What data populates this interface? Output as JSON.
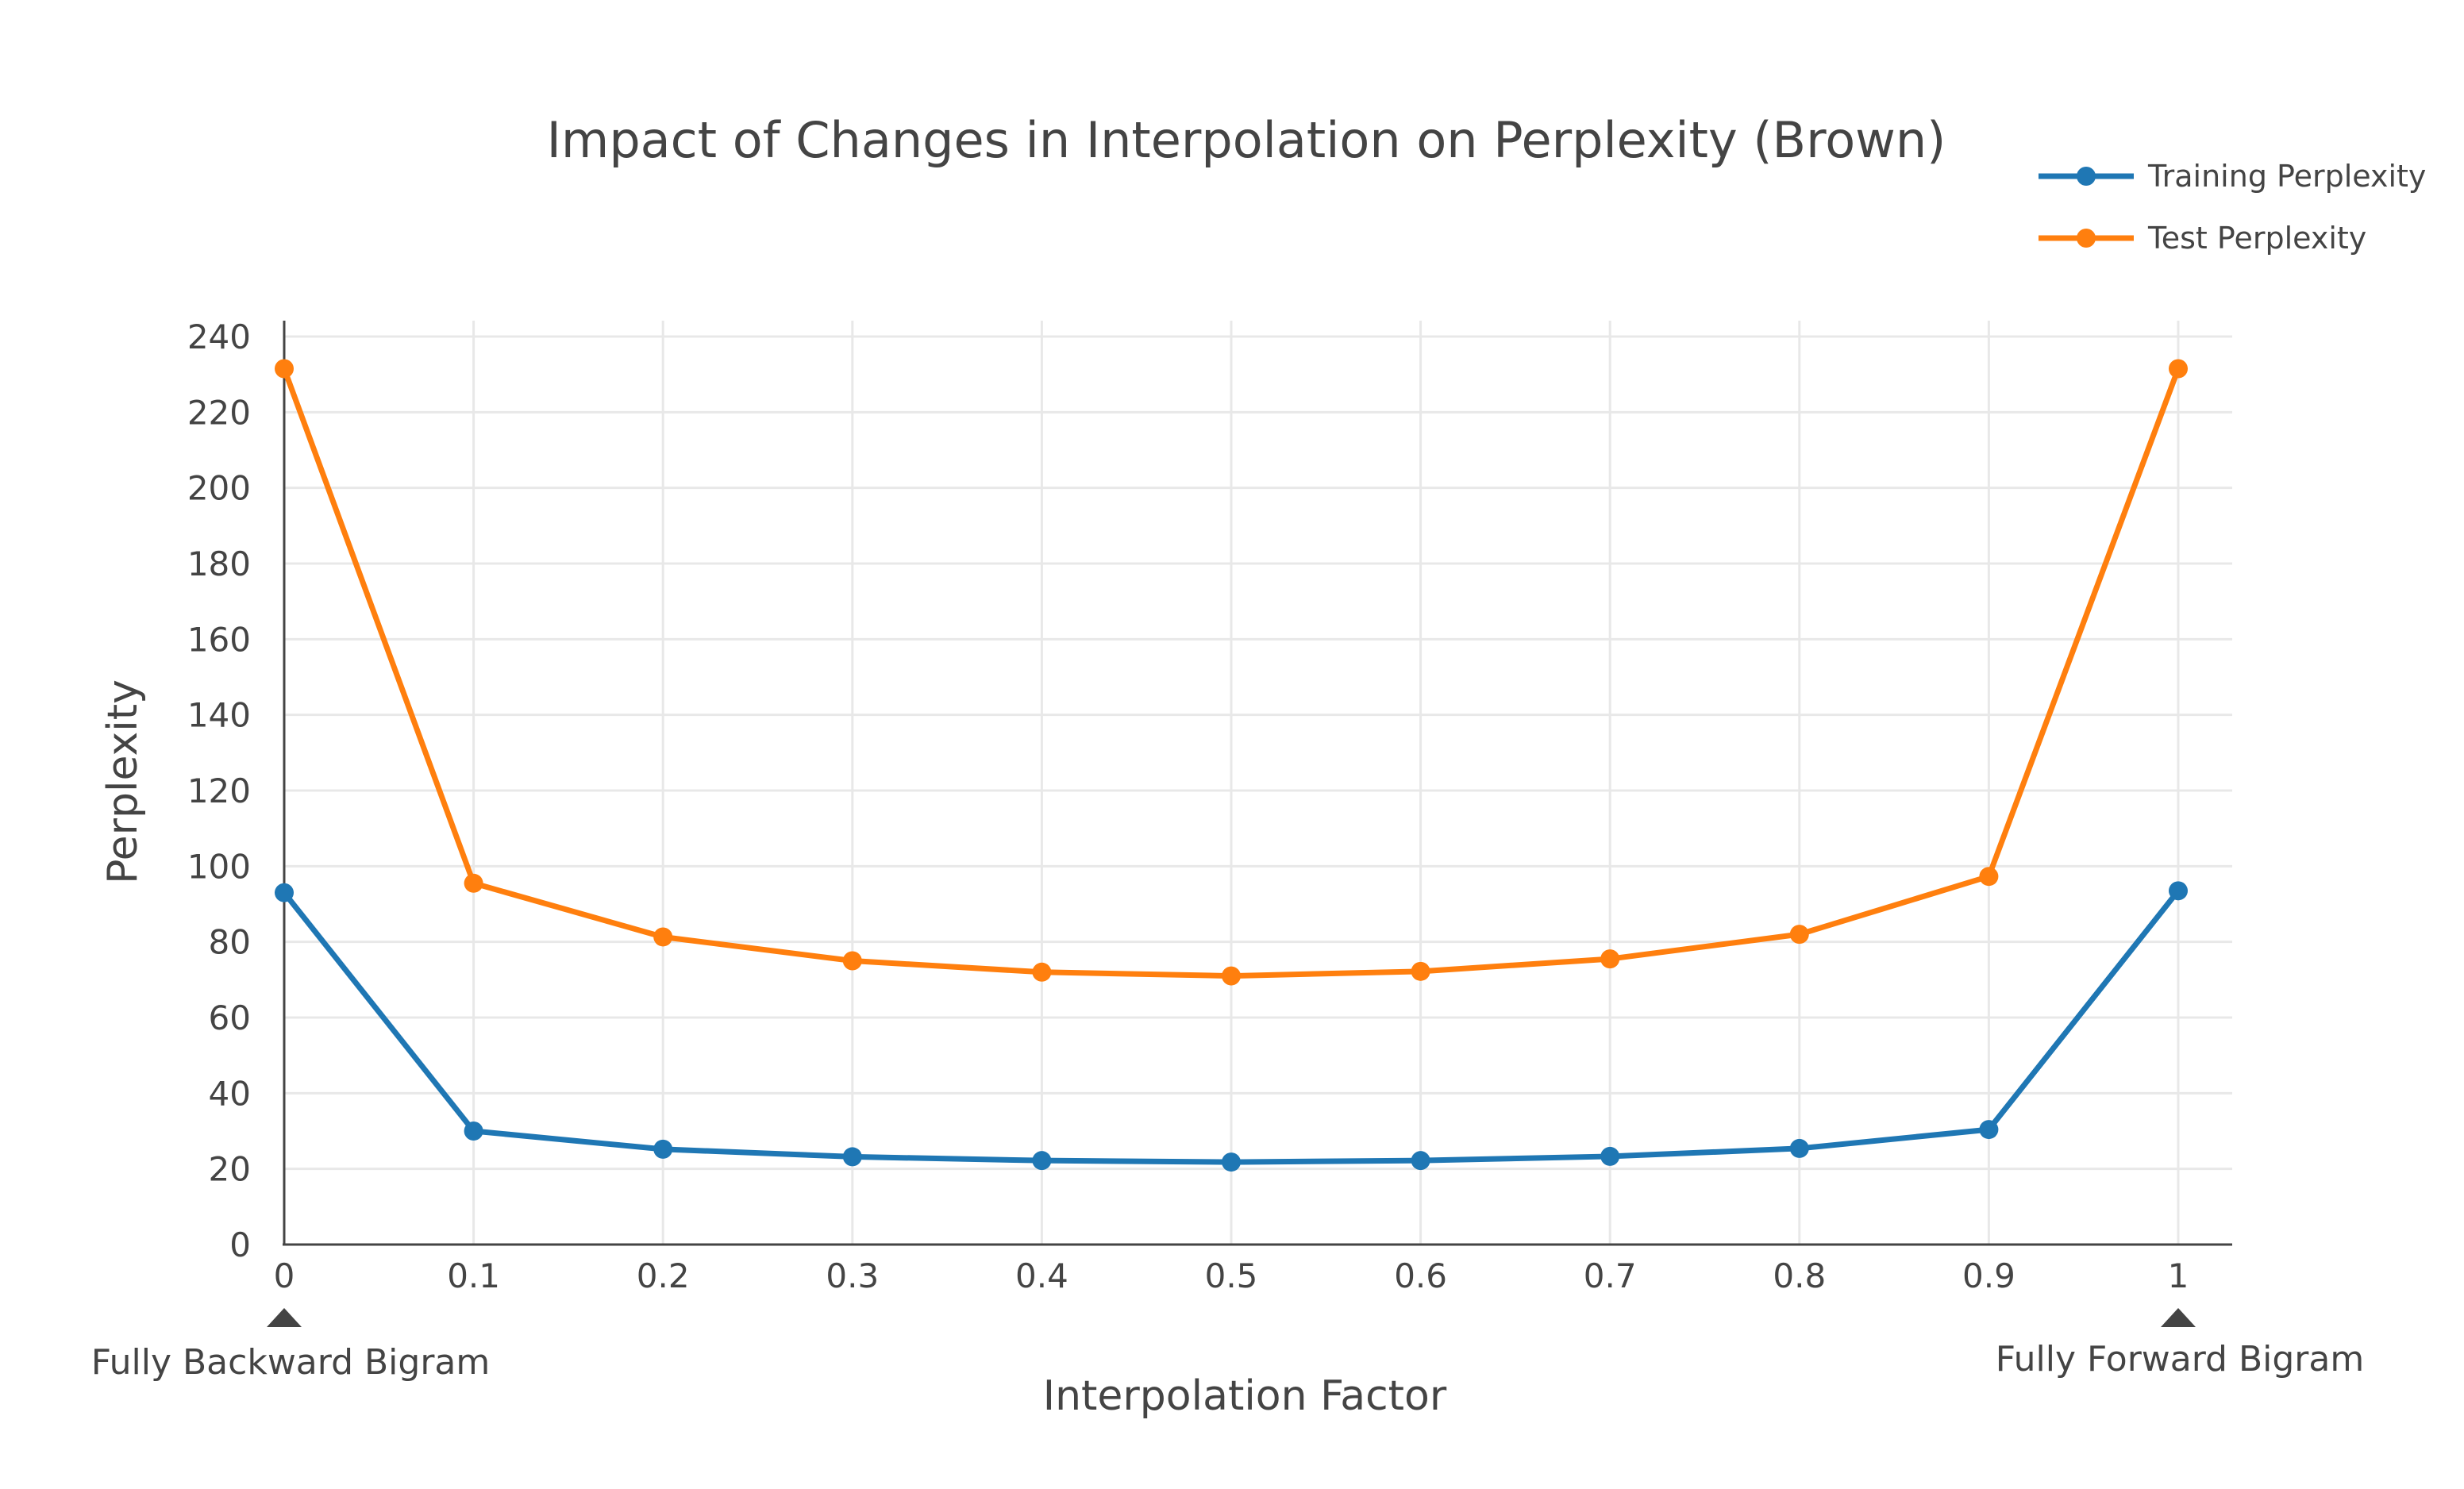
{
  "chart_data": {
    "type": "line",
    "title": "Impact of Changes in Interpolation on Perplexity (Brown)",
    "xlabel": "Interpolation Factor",
    "ylabel": "Perplexity",
    "x": [
      0,
      0.1,
      0.2,
      0.3,
      0.4,
      0.5,
      0.6,
      0.7,
      0.8,
      0.9,
      1
    ],
    "xtick_labels": [
      "0",
      "0.1",
      "0.2",
      "0.3",
      "0.4",
      "0.5",
      "0.6",
      "0.7",
      "0.8",
      "0.9",
      "1"
    ],
    "ytick_labels": [
      "0",
      "20",
      "40",
      "60",
      "80",
      "100",
      "120",
      "140",
      "160",
      "180",
      "200",
      "220",
      "240"
    ],
    "ylim": [
      0,
      240
    ],
    "grid": true,
    "legend_position": "top-right",
    "series": [
      {
        "name": "Training Perplexity",
        "color": "#1f77b4",
        "values": [
          93,
          30,
          25.2,
          23.2,
          22.2,
          21.8,
          22.2,
          23.3,
          25.4,
          30.4,
          93.5
        ]
      },
      {
        "name": "Test Perplexity",
        "color": "#ff7f0e",
        "values": [
          231.5,
          95.5,
          81.3,
          75,
          72,
          71,
          72.2,
          75.5,
          82,
          97.3,
          231.5
        ]
      }
    ],
    "annotations": [
      {
        "text": "Fully Backward Bigram",
        "x": 0,
        "marker": "up-arrow"
      },
      {
        "text": "Fully Forward Bigram",
        "x": 1,
        "marker": "up-arrow"
      }
    ]
  }
}
